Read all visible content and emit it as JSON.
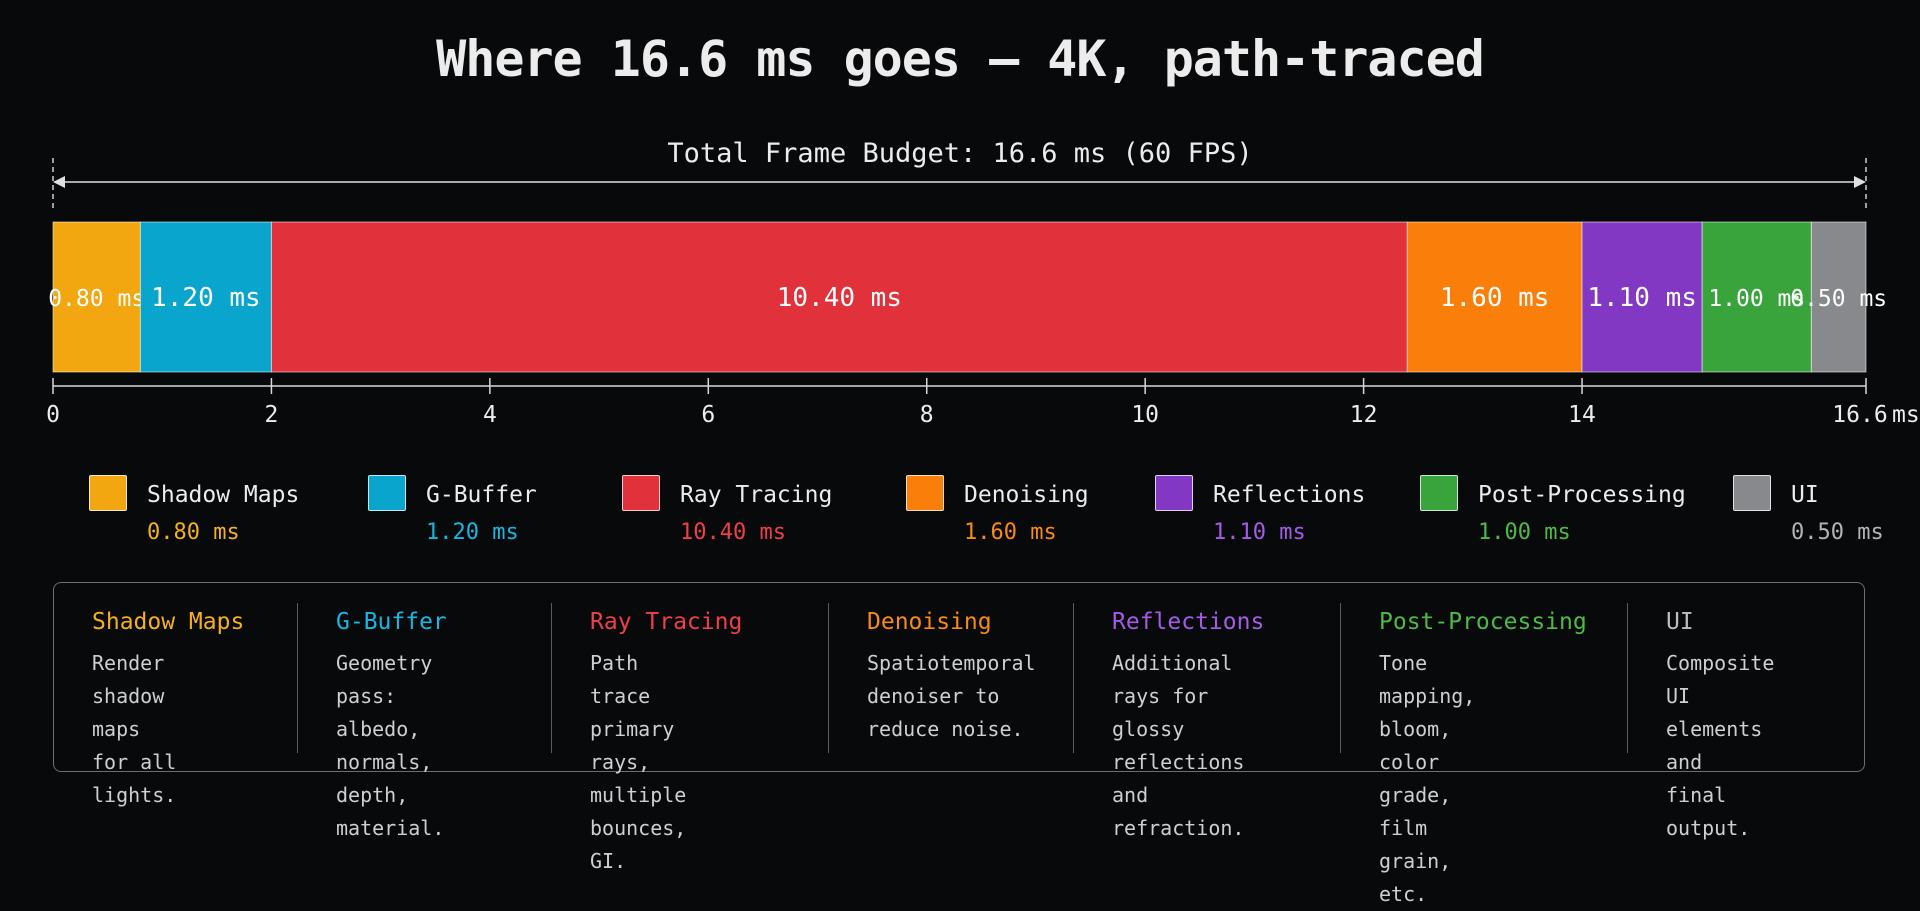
{
  "title": "Where 16.6 ms goes — 4K, path-traced",
  "chart_data": {
    "type": "bar",
    "orientation": "horizontal-stacked",
    "budget_label": "Total Frame Budget: 16.6 ms (60 FPS)",
    "total": 16.6,
    "xlim": [
      0,
      16.6
    ],
    "ticks": [
      0,
      2,
      4,
      6,
      8,
      10,
      12,
      14,
      16.6
    ],
    "tick_labels": [
      "0",
      "2",
      "4",
      "6",
      "8",
      "10",
      "12",
      "14",
      "16.6"
    ],
    "tick_unit": "ms",
    "segments": [
      {
        "name": "Shadow Maps",
        "value": 0.8,
        "label": "0.80 ms",
        "color": "#F2A60F",
        "value_color": "#F5B01C"
      },
      {
        "name": "G-Buffer",
        "value": 1.2,
        "label": "1.20 ms",
        "color": "#0AA5CC",
        "value_color": "#18B6E0"
      },
      {
        "name": "Ray Tracing",
        "value": 10.4,
        "label": "10.40 ms",
        "color": "#E1323C",
        "value_color": "#EF3F48"
      },
      {
        "name": "Denoising",
        "value": 1.6,
        "label": "1.60 ms",
        "color": "#F97E0A",
        "value_color": "#F98A14"
      },
      {
        "name": "Reflections",
        "value": 1.1,
        "label": "1.10 ms",
        "color": "#8238C3",
        "value_color": "#A55BE6"
      },
      {
        "name": "Post-Processing",
        "value": 1.0,
        "label": "1.00 ms",
        "color": "#3AA43C",
        "value_color": "#4DBB46"
      },
      {
        "name": "UI",
        "value": 0.5,
        "label": "0.50 ms",
        "color": "#88898C",
        "value_color": "#B4B4B4"
      }
    ]
  },
  "descriptions": [
    {
      "title": "Shadow Maps",
      "text": "Render shadow\nmaps for all\nlights."
    },
    {
      "title": "G-Buffer",
      "text": "Geometry pass:\nalbedo, normals,\ndepth, material."
    },
    {
      "title": "Ray Tracing",
      "text": "Path trace primary\nrays, multiple\nbounces, GI."
    },
    {
      "title": "Denoising",
      "text": "Spatiotemporal\ndenoiser to\nreduce noise."
    },
    {
      "title": "Reflections",
      "text": "Additional rays for\nglossy reflections\nand refraction."
    },
    {
      "title": "Post-Processing",
      "text": "Tone mapping,\nbloom, color grade,\nfilm grain, etc."
    },
    {
      "title": "UI",
      "text": "Composite UI\nelements and\nfinal output."
    }
  ]
}
